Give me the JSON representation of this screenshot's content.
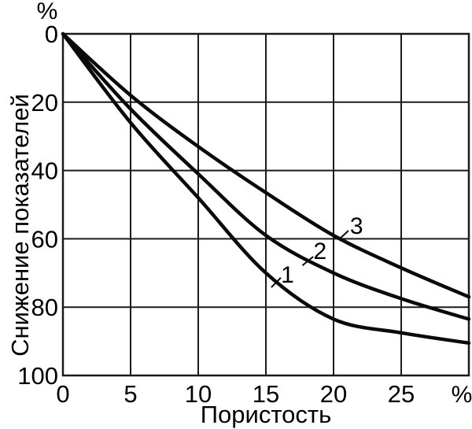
{
  "figure": {
    "background": "#ffffff",
    "line_color": "#0a0a0a",
    "grid_color": "#1a1a1a"
  },
  "chart_data": {
    "type": "line",
    "title": "",
    "xlabel": "Пористость",
    "ylabel": "Снижение показателей",
    "x_unit_label": "%",
    "y_unit_label": "%",
    "xlim": [
      0,
      30
    ],
    "ylim": [
      0,
      100
    ],
    "y_axis_inverted": true,
    "grid": true,
    "legend": "none",
    "x_ticks": [
      0,
      5,
      10,
      15,
      20,
      25
    ],
    "x_gridlines": [
      0,
      5,
      10,
      15,
      20,
      25,
      30
    ],
    "y_ticks": [
      0,
      20,
      40,
      60,
      80,
      100
    ],
    "x": [
      0,
      5,
      10,
      15,
      20,
      25,
      30
    ],
    "series": [
      {
        "name": "1",
        "values": [
          0,
          26,
          48,
          70,
          83.5,
          87.5,
          90.5
        ]
      },
      {
        "name": "2",
        "values": [
          0,
          22,
          41,
          59,
          70,
          77.5,
          83.5
        ]
      },
      {
        "name": "3",
        "values": [
          0,
          18,
          33,
          46.5,
          59,
          68.5,
          77
        ]
      }
    ],
    "annotations": [
      {
        "text": "1",
        "x": 16.6,
        "y": 70.3,
        "tick": {
          "x1": 15.4,
          "y1": 74.2,
          "x2": 16.1,
          "y2": 71.4
        }
      },
      {
        "text": "2",
        "x": 19.0,
        "y": 63.4,
        "tick": {
          "x1": 17.7,
          "y1": 67.8,
          "x2": 18.5,
          "y2": 65.2
        }
      },
      {
        "text": "3",
        "x": 21.7,
        "y": 56.0,
        "tick": {
          "x1": 20.4,
          "y1": 60.2,
          "x2": 21.1,
          "y2": 57.6
        }
      }
    ]
  }
}
